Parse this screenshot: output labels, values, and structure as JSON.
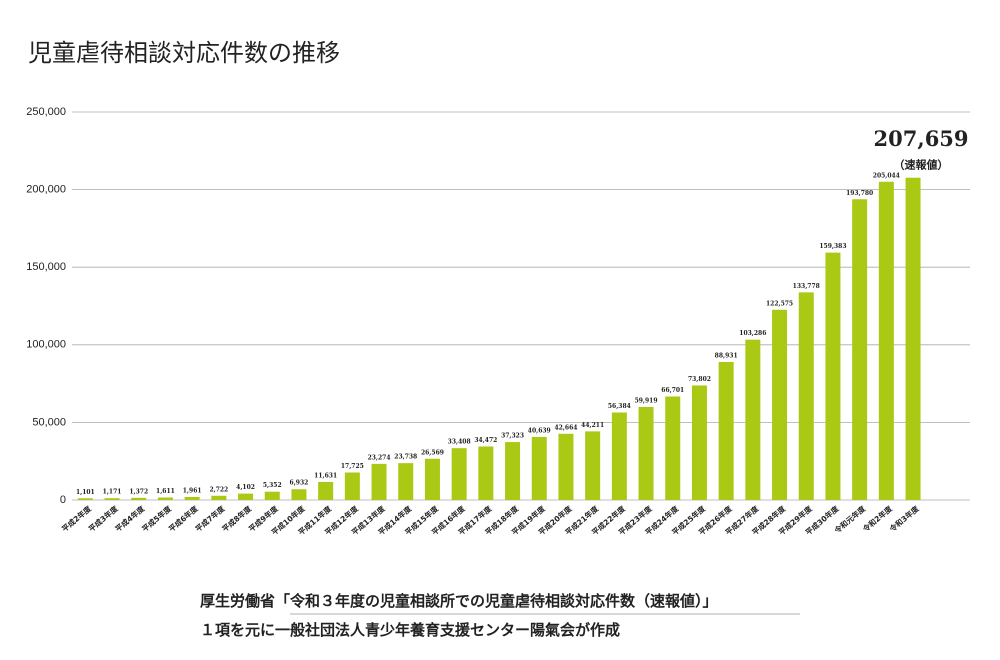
{
  "chart_data": {
    "type": "bar",
    "title": "児童虐待相談対応件数の推移",
    "categories": [
      "平成2年度",
      "平成3年度",
      "平成4年度",
      "平成5年度",
      "平成6年度",
      "平成7年度",
      "平成8年度",
      "平成9年度",
      "平成10年度",
      "平成11年度",
      "平成12年度",
      "平成13年度",
      "平成14年度",
      "平成15年度",
      "平成16年度",
      "平成17年度",
      "平成18年度",
      "平成19年度",
      "平成20年度",
      "平成21年度",
      "平成22年度",
      "平成23年度",
      "平成24年度",
      "平成25年度",
      "平成26年度",
      "平成27年度",
      "平成28年度",
      "平成29年度",
      "平成30年度",
      "令和元年度",
      "令和2年度",
      "令和3年度"
    ],
    "values": [
      1101,
      1171,
      1372,
      1611,
      1961,
      2722,
      4102,
      5352,
      6932,
      11631,
      17725,
      23274,
      23738,
      26569,
      33408,
      34472,
      37323,
      40639,
      42664,
      44211,
      56384,
      59919,
      66701,
      73802,
      88931,
      103286,
      122575,
      133778,
      159383,
      193780,
      205044,
      207659
    ],
    "value_labels": [
      "1,101",
      "1,171",
      "1,372",
      "1,611",
      "1,961",
      "2,722",
      "4,102",
      "5,352",
      "6,932",
      "11,631",
      "17,725",
      "23,274",
      "23,738",
      "26,569",
      "33,408",
      "34,472",
      "37,323",
      "40,639",
      "42,664",
      "44,211",
      "56,384",
      "59,919",
      "66,701",
      "73,802",
      "88,931",
      "103,286",
      "122,575",
      "133,778",
      "159,383",
      "193,780",
      "205,044",
      "207,659"
    ],
    "annotation": "（速報値）",
    "color": "#a9c915",
    "ylim": [
      0,
      250000
    ],
    "yticks": [
      0,
      {
        "value": 50000,
        "label": "50,000"
      },
      {
        "value": 100000,
        "label": "100,000"
      },
      {
        "value": 150000,
        "label": "150,000"
      },
      {
        "value": 200000,
        "label": "200,000"
      },
      {
        "value": 250000,
        "label": "250,000"
      }
    ],
    "grid": true,
    "source": [
      "厚生労働省「令和３年度の児童相談所での児童虐待相談対応件数（速報値）」",
      "１項を元に一般社団法人青少年養育支援センター陽氣会が作成"
    ]
  }
}
